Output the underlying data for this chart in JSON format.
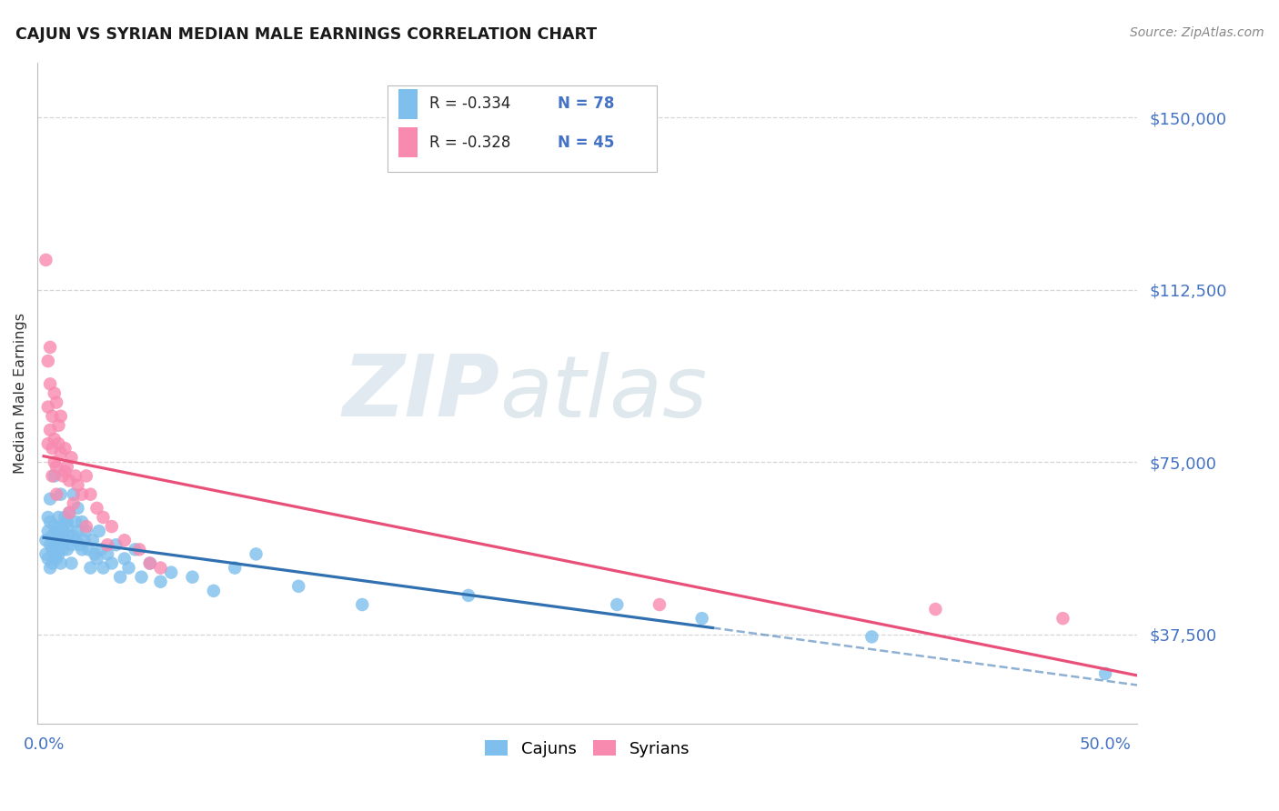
{
  "title": "CAJUN VS SYRIAN MEDIAN MALE EARNINGS CORRELATION CHART",
  "source": "Source: ZipAtlas.com",
  "ylabel": "Median Male Earnings",
  "ytick_labels": [
    "$37,500",
    "$75,000",
    "$112,500",
    "$150,000"
  ],
  "ytick_values": [
    37500,
    75000,
    112500,
    150000
  ],
  "ymin": 18000,
  "ymax": 162000,
  "xmin": -0.003,
  "xmax": 0.515,
  "cajun_color": "#7fbfed",
  "syrian_color": "#f88ab0",
  "cajun_line_color": "#3070b0",
  "syrian_line_color": "#e8507a",
  "legend_label_cajun": "Cajuns",
  "legend_label_syrian": "Syrians",
  "watermark_zip": "ZIP",
  "watermark_atlas": "atlas",
  "background_color": "#ffffff",
  "grid_color": "#cccccc",
  "axis_label_color": "#4472c4",
  "cajun_scatter_x": [
    0.001,
    0.001,
    0.002,
    0.002,
    0.003,
    0.003,
    0.003,
    0.004,
    0.004,
    0.004,
    0.005,
    0.005,
    0.005,
    0.006,
    0.006,
    0.006,
    0.007,
    0.007,
    0.007,
    0.008,
    0.008,
    0.008,
    0.009,
    0.009,
    0.01,
    0.01,
    0.011,
    0.011,
    0.012,
    0.012,
    0.013,
    0.013,
    0.014,
    0.015,
    0.015,
    0.016,
    0.016,
    0.017,
    0.018,
    0.019,
    0.02,
    0.021,
    0.022,
    0.023,
    0.024,
    0.025,
    0.026,
    0.027,
    0.028,
    0.03,
    0.032,
    0.034,
    0.036,
    0.038,
    0.04,
    0.043,
    0.046,
    0.05,
    0.055,
    0.06,
    0.07,
    0.08,
    0.09,
    0.1,
    0.12,
    0.15,
    0.2,
    0.27,
    0.31,
    0.39,
    0.002,
    0.003,
    0.005,
    0.008,
    0.011,
    0.014,
    0.018,
    0.5
  ],
  "cajun_scatter_y": [
    58000,
    55000,
    60000,
    54000,
    57000,
    62000,
    52000,
    59000,
    56000,
    53000,
    61000,
    57000,
    55000,
    60000,
    58000,
    54000,
    63000,
    59000,
    55000,
    61000,
    57000,
    53000,
    60000,
    56000,
    63000,
    58000,
    61000,
    56000,
    64000,
    59000,
    57000,
    53000,
    68000,
    62000,
    58000,
    65000,
    60000,
    57000,
    62000,
    58000,
    60000,
    56000,
    52000,
    58000,
    55000,
    54000,
    60000,
    56000,
    52000,
    55000,
    53000,
    57000,
    50000,
    54000,
    52000,
    56000,
    50000,
    53000,
    49000,
    51000,
    50000,
    47000,
    52000,
    55000,
    48000,
    44000,
    46000,
    44000,
    41000,
    37000,
    63000,
    67000,
    72000,
    68000,
    62000,
    59000,
    56000,
    29000
  ],
  "syrian_scatter_x": [
    0.001,
    0.002,
    0.002,
    0.003,
    0.003,
    0.004,
    0.004,
    0.005,
    0.005,
    0.006,
    0.006,
    0.007,
    0.008,
    0.008,
    0.009,
    0.01,
    0.011,
    0.012,
    0.013,
    0.015,
    0.016,
    0.018,
    0.02,
    0.022,
    0.025,
    0.028,
    0.032,
    0.038,
    0.045,
    0.055,
    0.003,
    0.005,
    0.007,
    0.01,
    0.014,
    0.29,
    0.42,
    0.48,
    0.002,
    0.004,
    0.006,
    0.012,
    0.02,
    0.03,
    0.05
  ],
  "syrian_scatter_y": [
    119000,
    87000,
    97000,
    82000,
    92000,
    78000,
    85000,
    75000,
    80000,
    88000,
    74000,
    79000,
    85000,
    77000,
    72000,
    78000,
    74000,
    71000,
    76000,
    72000,
    70000,
    68000,
    72000,
    68000,
    65000,
    63000,
    61000,
    58000,
    56000,
    52000,
    100000,
    90000,
    83000,
    73000,
    66000,
    44000,
    43000,
    41000,
    79000,
    72000,
    68000,
    64000,
    61000,
    57000,
    53000
  ]
}
